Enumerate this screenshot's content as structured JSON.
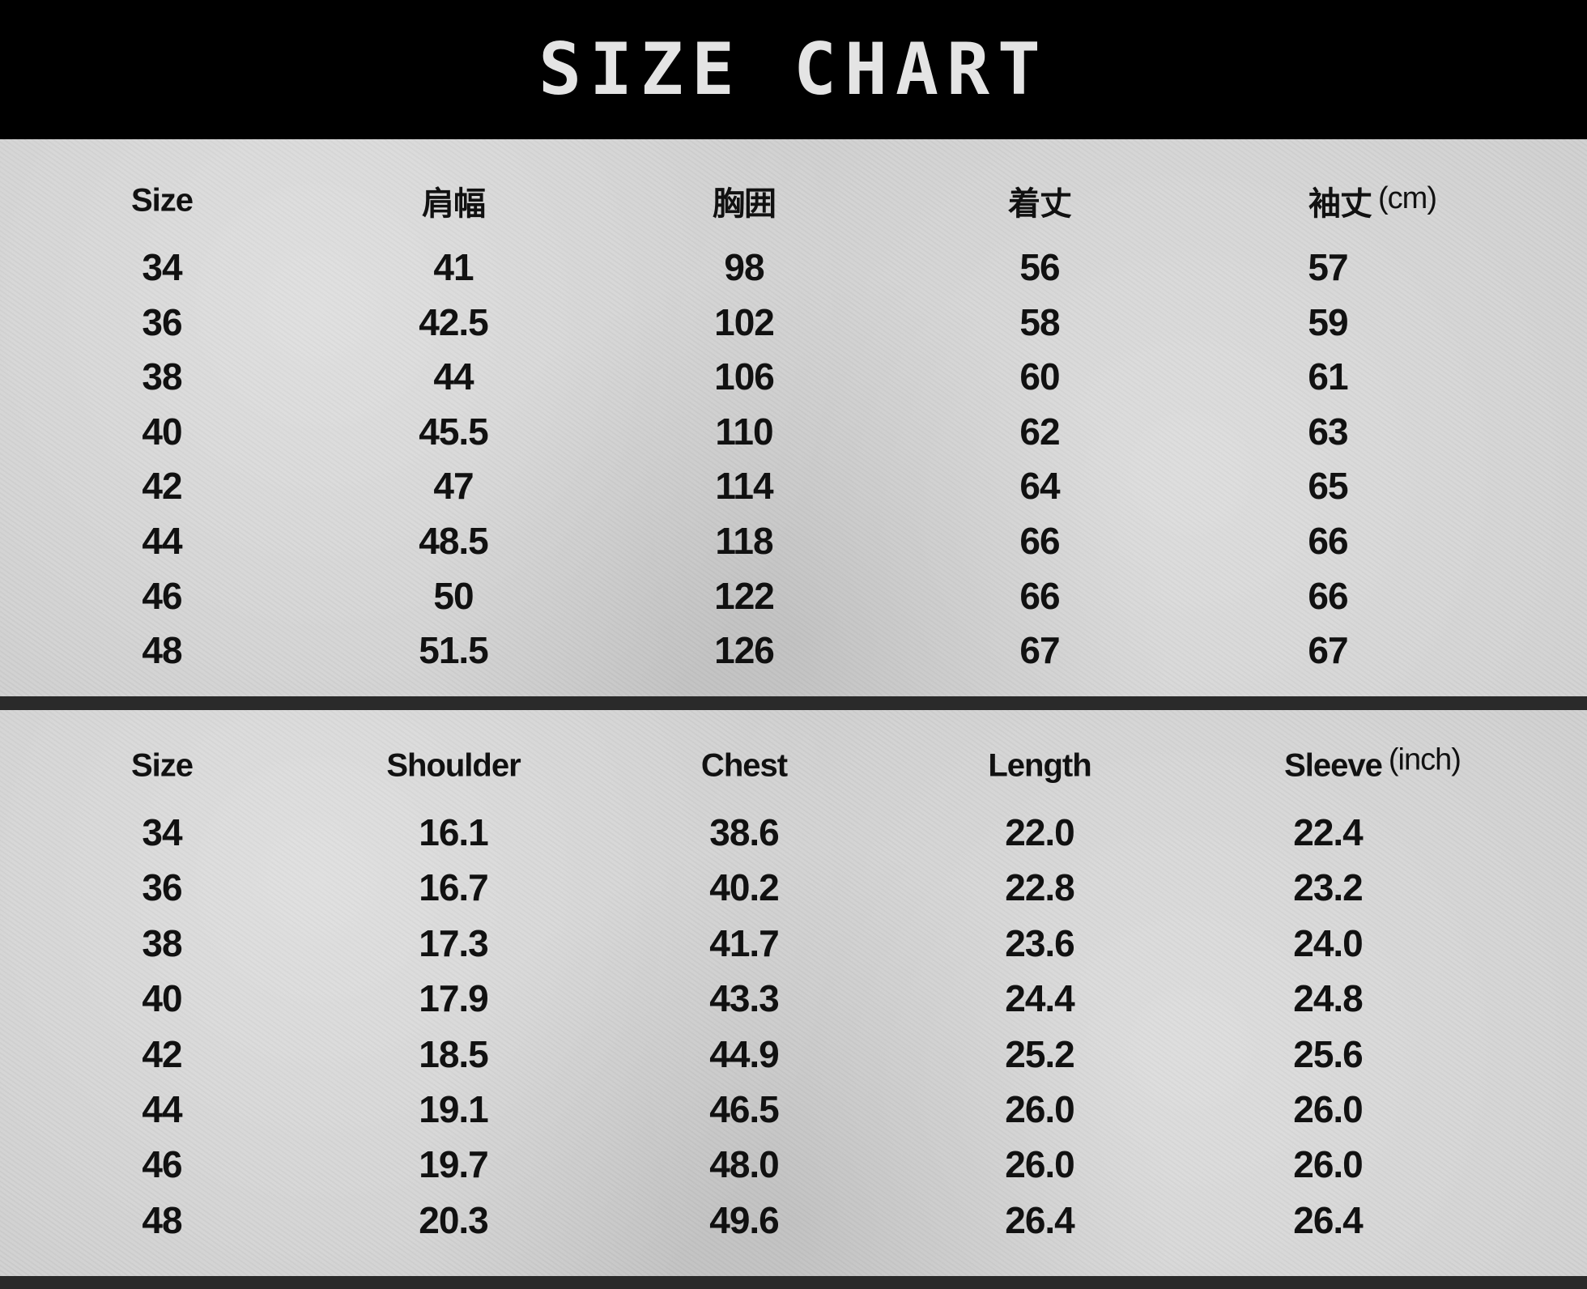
{
  "title": "SIZE CHART",
  "tables": [
    {
      "unit": "(cm)",
      "headers": [
        "Size",
        "肩幅",
        "胸囲",
        "着丈",
        "袖丈"
      ],
      "rows": [
        [
          "34",
          "41",
          "98",
          "56",
          "57"
        ],
        [
          "36",
          "42.5",
          "102",
          "58",
          "59"
        ],
        [
          "38",
          "44",
          "106",
          "60",
          "61"
        ],
        [
          "40",
          "45.5",
          "110",
          "62",
          "63"
        ],
        [
          "42",
          "47",
          "114",
          "64",
          "65"
        ],
        [
          "44",
          "48.5",
          "118",
          "66",
          "66"
        ],
        [
          "46",
          "50",
          "122",
          "66",
          "66"
        ],
        [
          "48",
          "51.5",
          "126",
          "67",
          "67"
        ]
      ]
    },
    {
      "unit": "(inch)",
      "headers": [
        "Size",
        "Shoulder",
        "Chest",
        "Length",
        "Sleeve"
      ],
      "rows": [
        [
          "34",
          "16.1",
          "38.6",
          "22.0",
          "22.4"
        ],
        [
          "36",
          "16.7",
          "40.2",
          "22.8",
          "23.2"
        ],
        [
          "38",
          "17.3",
          "41.7",
          "23.6",
          "24.0"
        ],
        [
          "40",
          "17.9",
          "43.3",
          "24.4",
          "24.8"
        ],
        [
          "42",
          "18.5",
          "44.9",
          "25.2",
          "25.6"
        ],
        [
          "44",
          "19.1",
          "46.5",
          "26.0",
          "26.0"
        ],
        [
          "46",
          "19.7",
          "48.0",
          "26.0",
          "26.0"
        ],
        [
          "48",
          "20.3",
          "49.6",
          "26.4",
          "26.4"
        ]
      ]
    }
  ]
}
